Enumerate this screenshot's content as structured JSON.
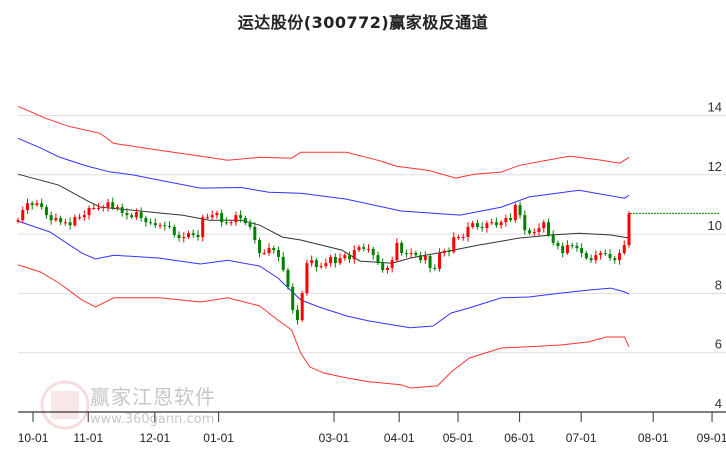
{
  "title": "运达股份(300772)赢家极反通道",
  "watermark": {
    "brand": "赢家江恩软件",
    "url": "www.360gann.com",
    "logo_text": "江恩"
  },
  "chart_data": {
    "type": "candlestick",
    "title": "运达股份(300772)赢家极反通道",
    "ylim": [
      4,
      15
    ],
    "y_ticks": [
      4,
      6,
      8,
      10,
      12,
      14
    ],
    "x_ticks": [
      {
        "label": "10-01",
        "day": 3.3
      },
      {
        "label": "11-01",
        "day": 15.4
      },
      {
        "label": "12-01",
        "day": 30
      },
      {
        "label": "01-01",
        "day": 44
      },
      {
        "label": "03-01",
        "day": 69.3
      },
      {
        "label": "04-01",
        "day": 83.6
      },
      {
        "label": "05-01",
        "day": 96.5
      },
      {
        "label": "06-01",
        "day": 110
      },
      {
        "label": "07-01",
        "day": 123.5
      },
      {
        "label": "08-01",
        "day": 139.3
      },
      {
        "label": "09-01",
        "day": 152.2
      }
    ],
    "grid": true,
    "colors": {
      "up": "#ff0000",
      "down": "#008000",
      "ma": "#333333",
      "inner_band": "#3333ff",
      "outer_band": "#ff3333",
      "last_price_line": "#008000"
    },
    "last_close": 10.7,
    "closes": [
      10.47,
      10.81,
      11.04,
      10.98,
      11.04,
      10.91,
      10.64,
      10.47,
      10.54,
      10.4,
      10.4,
      10.3,
      10.57,
      10.57,
      10.64,
      10.88,
      10.88,
      10.88,
      10.91,
      11.07,
      10.88,
      10.91,
      10.71,
      10.64,
      10.57,
      10.74,
      10.54,
      10.4,
      10.37,
      10.3,
      10.3,
      10.27,
      10.24,
      9.97,
      9.87,
      9.9,
      10.03,
      9.97,
      9.9,
      10.57,
      10.57,
      10.64,
      10.71,
      10.4,
      10.37,
      10.4,
      10.64,
      10.54,
      10.37,
      10.24,
      9.8,
      9.36,
      9.36,
      9.53,
      9.46,
      9.23,
      8.79,
      8.22,
      7.44,
      7.1,
      8.01,
      9.02,
      9.12,
      8.89,
      8.92,
      9.02,
      9.23,
      9.02,
      9.19,
      9.29,
      9.15,
      9.46,
      9.56,
      9.5,
      9.5,
      9.29,
      9.02,
      8.79,
      8.86,
      9.12,
      9.7,
      9.36,
      9.33,
      9.36,
      9.29,
      9.12,
      9.26,
      8.86,
      8.83,
      9.36,
      9.43,
      9.4,
      9.9,
      9.9,
      9.9,
      10.24,
      10.37,
      10.24,
      10.2,
      10.37,
      10.4,
      10.3,
      10.4,
      10.54,
      10.47,
      10.98,
      10.64,
      10.13,
      10.03,
      10.07,
      10.2,
      10.4,
      9.97,
      9.7,
      9.6,
      9.36,
      9.63,
      9.6,
      9.53,
      9.36,
      9.19,
      9.12,
      9.29,
      9.36,
      9.33,
      9.19,
      9.12,
      9.36,
      9.63,
      10.7
    ],
    "bands": {
      "ma": [
        [
          0,
          12.02
        ],
        [
          9,
          11.65
        ],
        [
          15,
          11.14
        ],
        [
          18,
          10.91
        ],
        [
          25,
          10.81
        ],
        [
          31,
          10.71
        ],
        [
          36,
          10.64
        ],
        [
          42,
          10.47
        ],
        [
          49,
          10.47
        ],
        [
          53,
          10.3
        ],
        [
          58,
          9.9
        ],
        [
          62,
          9.8
        ],
        [
          71,
          9.46
        ],
        [
          75,
          9.09
        ],
        [
          82,
          9.02
        ],
        [
          86,
          9.19
        ],
        [
          93,
          9.39
        ],
        [
          101,
          9.63
        ],
        [
          110,
          9.87
        ],
        [
          117,
          9.97
        ],
        [
          123,
          10.03
        ],
        [
          130,
          9.97
        ],
        [
          134,
          9.87
        ]
      ],
      "inner_upper": [
        [
          0,
          13.23
        ],
        [
          5,
          12.9
        ],
        [
          9,
          12.6
        ],
        [
          15,
          12.3
        ],
        [
          20,
          12.1
        ],
        [
          25,
          12.0
        ],
        [
          31,
          11.82
        ],
        [
          40,
          11.55
        ],
        [
          49,
          11.57
        ],
        [
          55,
          11.41
        ],
        [
          62,
          11.38
        ],
        [
          72,
          11.18
        ],
        [
          84,
          10.78
        ],
        [
          97,
          10.64
        ],
        [
          106,
          10.91
        ],
        [
          112,
          11.25
        ],
        [
          123,
          11.48
        ],
        [
          133,
          11.21
        ],
        [
          134,
          11.31
        ]
      ],
      "inner_lower": [
        [
          0,
          10.44
        ],
        [
          7,
          10.07
        ],
        [
          14,
          9.36
        ],
        [
          17,
          9.16
        ],
        [
          21,
          9.29
        ],
        [
          31,
          9.19
        ],
        [
          40,
          8.99
        ],
        [
          46,
          9.12
        ],
        [
          53,
          8.92
        ],
        [
          57,
          8.52
        ],
        [
          62,
          7.78
        ],
        [
          66,
          7.54
        ],
        [
          72,
          7.24
        ],
        [
          77,
          7.07
        ],
        [
          86,
          6.84
        ],
        [
          91,
          6.9
        ],
        [
          95,
          7.34
        ],
        [
          99,
          7.51
        ],
        [
          106,
          7.85
        ],
        [
          112,
          7.88
        ],
        [
          119,
          8.01
        ],
        [
          125,
          8.11
        ],
        [
          130,
          8.18
        ],
        [
          133,
          8.05
        ],
        [
          134,
          7.98
        ]
      ],
      "outer_upper": [
        [
          0,
          14.31
        ],
        [
          6,
          13.91
        ],
        [
          11,
          13.64
        ],
        [
          18,
          13.4
        ],
        [
          21,
          13.06
        ],
        [
          31,
          12.83
        ],
        [
          40,
          12.63
        ],
        [
          46,
          12.49
        ],
        [
          53,
          12.59
        ],
        [
          60,
          12.56
        ],
        [
          62,
          12.76
        ],
        [
          66,
          12.76
        ],
        [
          72,
          12.76
        ],
        [
          79,
          12.49
        ],
        [
          83,
          12.29
        ],
        [
          90,
          12.15
        ],
        [
          96,
          11.89
        ],
        [
          100,
          12.02
        ],
        [
          106,
          12.09
        ],
        [
          110,
          12.32
        ],
        [
          116,
          12.49
        ],
        [
          121,
          12.63
        ],
        [
          128,
          12.49
        ],
        [
          132,
          12.39
        ],
        [
          134,
          12.59
        ]
      ],
      "outer_lower": [
        [
          0,
          8.96
        ],
        [
          5,
          8.72
        ],
        [
          9,
          8.35
        ],
        [
          14,
          7.78
        ],
        [
          17,
          7.54
        ],
        [
          21,
          7.85
        ],
        [
          31,
          7.85
        ],
        [
          40,
          7.71
        ],
        [
          46,
          7.85
        ],
        [
          53,
          7.58
        ],
        [
          57,
          7.1
        ],
        [
          60,
          6.77
        ],
        [
          62,
          5.99
        ],
        [
          64,
          5.52
        ],
        [
          67,
          5.32
        ],
        [
          72,
          5.15
        ],
        [
          77,
          5.02
        ],
        [
          84,
          4.92
        ],
        [
          86,
          4.81
        ],
        [
          92,
          4.88
        ],
        [
          95,
          5.35
        ],
        [
          99,
          5.82
        ],
        [
          106,
          6.16
        ],
        [
          112,
          6.2
        ],
        [
          119,
          6.26
        ],
        [
          125,
          6.36
        ],
        [
          129,
          6.53
        ],
        [
          133,
          6.53
        ],
        [
          134,
          6.2
        ]
      ]
    }
  }
}
